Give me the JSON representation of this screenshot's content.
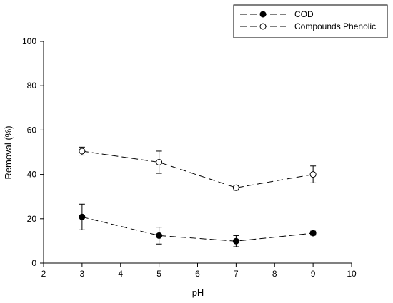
{
  "chart_data": {
    "type": "line",
    "xlabel": "pH",
    "ylabel": "Removal (%)",
    "xlim": [
      2,
      10
    ],
    "ylim": [
      0,
      100
    ],
    "xticks": [
      2,
      3,
      4,
      5,
      6,
      7,
      8,
      9,
      10
    ],
    "yticks": [
      0,
      20,
      40,
      60,
      80,
      100
    ],
    "grid": false,
    "legend_position": "top-right",
    "series": [
      {
        "name": "COD",
        "marker": "filled-circle",
        "line_style": "dashed",
        "color": "#000000",
        "x": [
          3,
          5,
          7,
          9
        ],
        "y": [
          20.8,
          12.4,
          9.9,
          13.5
        ],
        "error": [
          5.8,
          3.8,
          2.5,
          0.9
        ]
      },
      {
        "name": "Compounds Phenolic",
        "marker": "open-circle",
        "line_style": "dashed",
        "color": "#000000",
        "x": [
          3,
          5,
          7,
          9
        ],
        "y": [
          50.5,
          45.5,
          34.0,
          40.0
        ],
        "error": [
          1.8,
          5.0,
          1.1,
          3.8
        ]
      }
    ]
  }
}
